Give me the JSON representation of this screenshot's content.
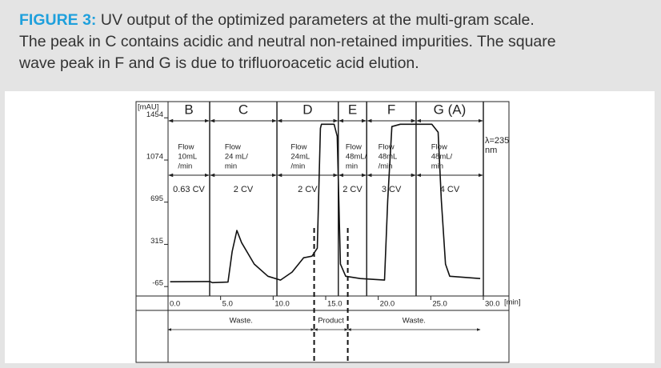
{
  "caption": {
    "label": "FIGURE 3:",
    "lines": [
      "UV output of the optimized parameters at the multi-gram scale.",
      "The peak in C contains acidic and neutral non-retained impurities. The square",
      "wave peak in F and G is due to trifluoroacetic acid elution."
    ]
  },
  "chart_data": {
    "type": "line",
    "ylabel": "[mAU]",
    "xlabel": "[min]",
    "color": "#111111",
    "xlim": [
      0,
      30
    ],
    "ylim": [
      -150,
      1600
    ],
    "xticks": [
      {
        "value": 0,
        "label": "0.0"
      },
      {
        "value": 5,
        "label": "5.0"
      },
      {
        "value": 10,
        "label": "10.0"
      },
      {
        "value": 15,
        "label": "15.0"
      },
      {
        "value": 20,
        "label": "20.0"
      },
      {
        "value": 25,
        "label": "25.0"
      },
      {
        "value": 30,
        "label": "30.0"
      }
    ],
    "yticks": [
      -65,
      315,
      695,
      1074,
      1454
    ],
    "x": [
      0.2,
      4.0,
      4.2,
      5.7,
      6.1,
      6.55,
      7.0,
      8.2,
      9.5,
      10.7,
      11.8,
      12.9,
      13.7,
      14.2,
      14.5,
      14.6,
      15.8,
      16.1,
      16.4,
      16.9,
      18.3,
      20.6,
      20.9,
      21.3,
      22.1,
      25.1,
      25.7,
      26.0,
      26.4,
      26.8,
      29.7
    ],
    "values": [
      -22,
      -20,
      -30,
      -25,
      250,
      440,
      330,
      137,
      28,
      -7,
      65,
      194,
      209,
      281,
      1360,
      1396,
      1396,
      1288,
      137,
      28,
      7,
      -7,
      712,
      1375,
      1396,
      1396,
      1324,
      712,
      137,
      28,
      7
    ],
    "sections": [
      {
        "label": "B",
        "flow": [
          "Flow",
          "10mL",
          "/min"
        ],
        "cv": "0.63 CV",
        "start": 0,
        "end": 3.96
      },
      {
        "label": "C",
        "flow": [
          "Flow",
          "24 mL/",
          "min"
        ],
        "cv": "2 CV",
        "start": 3.96,
        "end": 10.36
      },
      {
        "label": "D",
        "flow": [
          "Flow",
          "24mL",
          "/min"
        ],
        "cv": "2 CV",
        "start": 10.36,
        "end": 16.2
      },
      {
        "label": "E",
        "flow": [
          "Flow",
          "48mL/",
          "min"
        ],
        "cv": "2 CV",
        "start": 16.2,
        "end": 18.9
      },
      {
        "label": "F",
        "flow": [
          "Flow",
          "48mL",
          "/min"
        ],
        "cv": "3 CV",
        "start": 18.9,
        "end": 23.6
      },
      {
        "label": "G (A)",
        "flow": [
          "Flow",
          "48mL/",
          "min"
        ],
        "cv": "4 CV",
        "start": 23.6,
        "end": 30
      }
    ],
    "wavelength": [
      "λ=235",
      "nm"
    ],
    "fractions": [
      {
        "label": "Waste.",
        "start": 0,
        "end": 13.9
      },
      {
        "label": "Product",
        "start": 13.9,
        "end": 17.1
      },
      {
        "label": "Waste.",
        "start": 17.1,
        "end": 29.7
      }
    ]
  }
}
